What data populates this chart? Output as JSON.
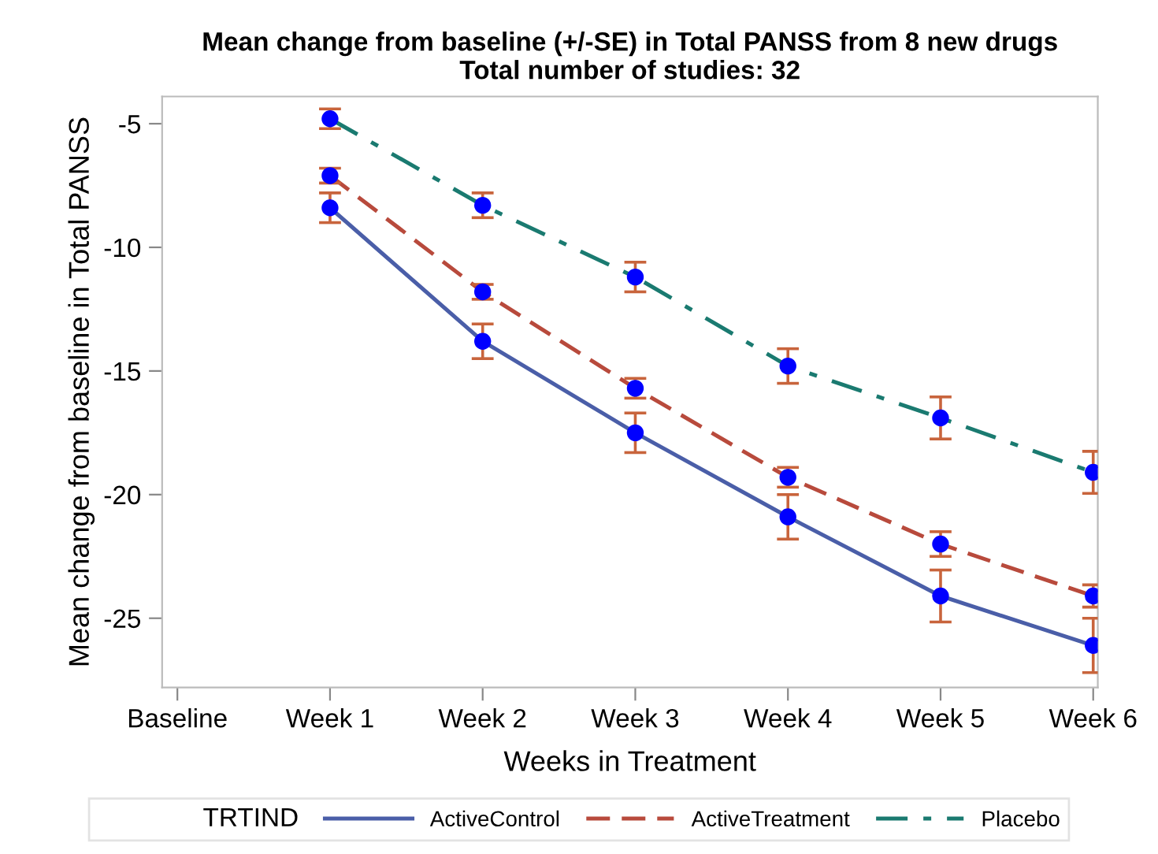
{
  "chart_data": {
    "type": "line",
    "title": "Mean change from baseline (+/-SE) in Total PANSS from 8 new drugs\nTotal number of studies: 32",
    "xlabel": "Weeks in Treatment",
    "ylabel": "Mean change from baseline in Total PANSS",
    "legend_title": "TRTIND",
    "legend": "bottom",
    "marker": "circle",
    "grid": false,
    "categories": [
      "Baseline",
      "Week 1",
      "Week 2",
      "Week 3",
      "Week 4",
      "Week 5",
      "Week 6"
    ],
    "ylim": [
      -27.8,
      -3.9
    ],
    "yticks": [
      -5,
      -10,
      -15,
      -20,
      -25
    ],
    "series": [
      {
        "name": "ActiveControl",
        "color": "#4a5ea8",
        "line_style": "solid",
        "colors": [
          "#0000ff",
          "#0000ff",
          "#0000ff",
          "#0000ff",
          "#0000ff",
          "#0000ff",
          "#0000ff"
        ],
        "values": [
          null,
          -8.4,
          -13.8,
          -17.5,
          -20.9,
          -24.1,
          -26.1
        ],
        "errors": [
          null,
          0.6,
          0.7,
          0.8,
          0.9,
          1.05,
          1.1
        ]
      },
      {
        "name": "ActiveTreatment",
        "color": "#b84a3c",
        "line_style": "dashed",
        "colors": [
          "#0000ff",
          "#0000ff",
          "#0000ff",
          "#0000ff",
          "#0000ff",
          "#0000ff",
          "#0000ff"
        ],
        "values": [
          null,
          -7.1,
          -11.8,
          -15.7,
          -19.3,
          -22.0,
          -24.1
        ],
        "errors": [
          null,
          0.3,
          0.3,
          0.4,
          0.4,
          0.5,
          0.45
        ]
      },
      {
        "name": "Placebo",
        "color": "#1a7a70",
        "line_style": "dashdot",
        "colors": [
          "#0000ff",
          "#0000ff",
          "#0000ff",
          "#0000ff",
          "#0000ff",
          "#0000ff",
          "#0000ff"
        ],
        "values": [
          null,
          -4.8,
          -8.3,
          -11.2,
          -14.8,
          -16.9,
          -19.1
        ],
        "errors": [
          null,
          0.4,
          0.5,
          0.6,
          0.7,
          0.85,
          0.85
        ]
      }
    ]
  }
}
